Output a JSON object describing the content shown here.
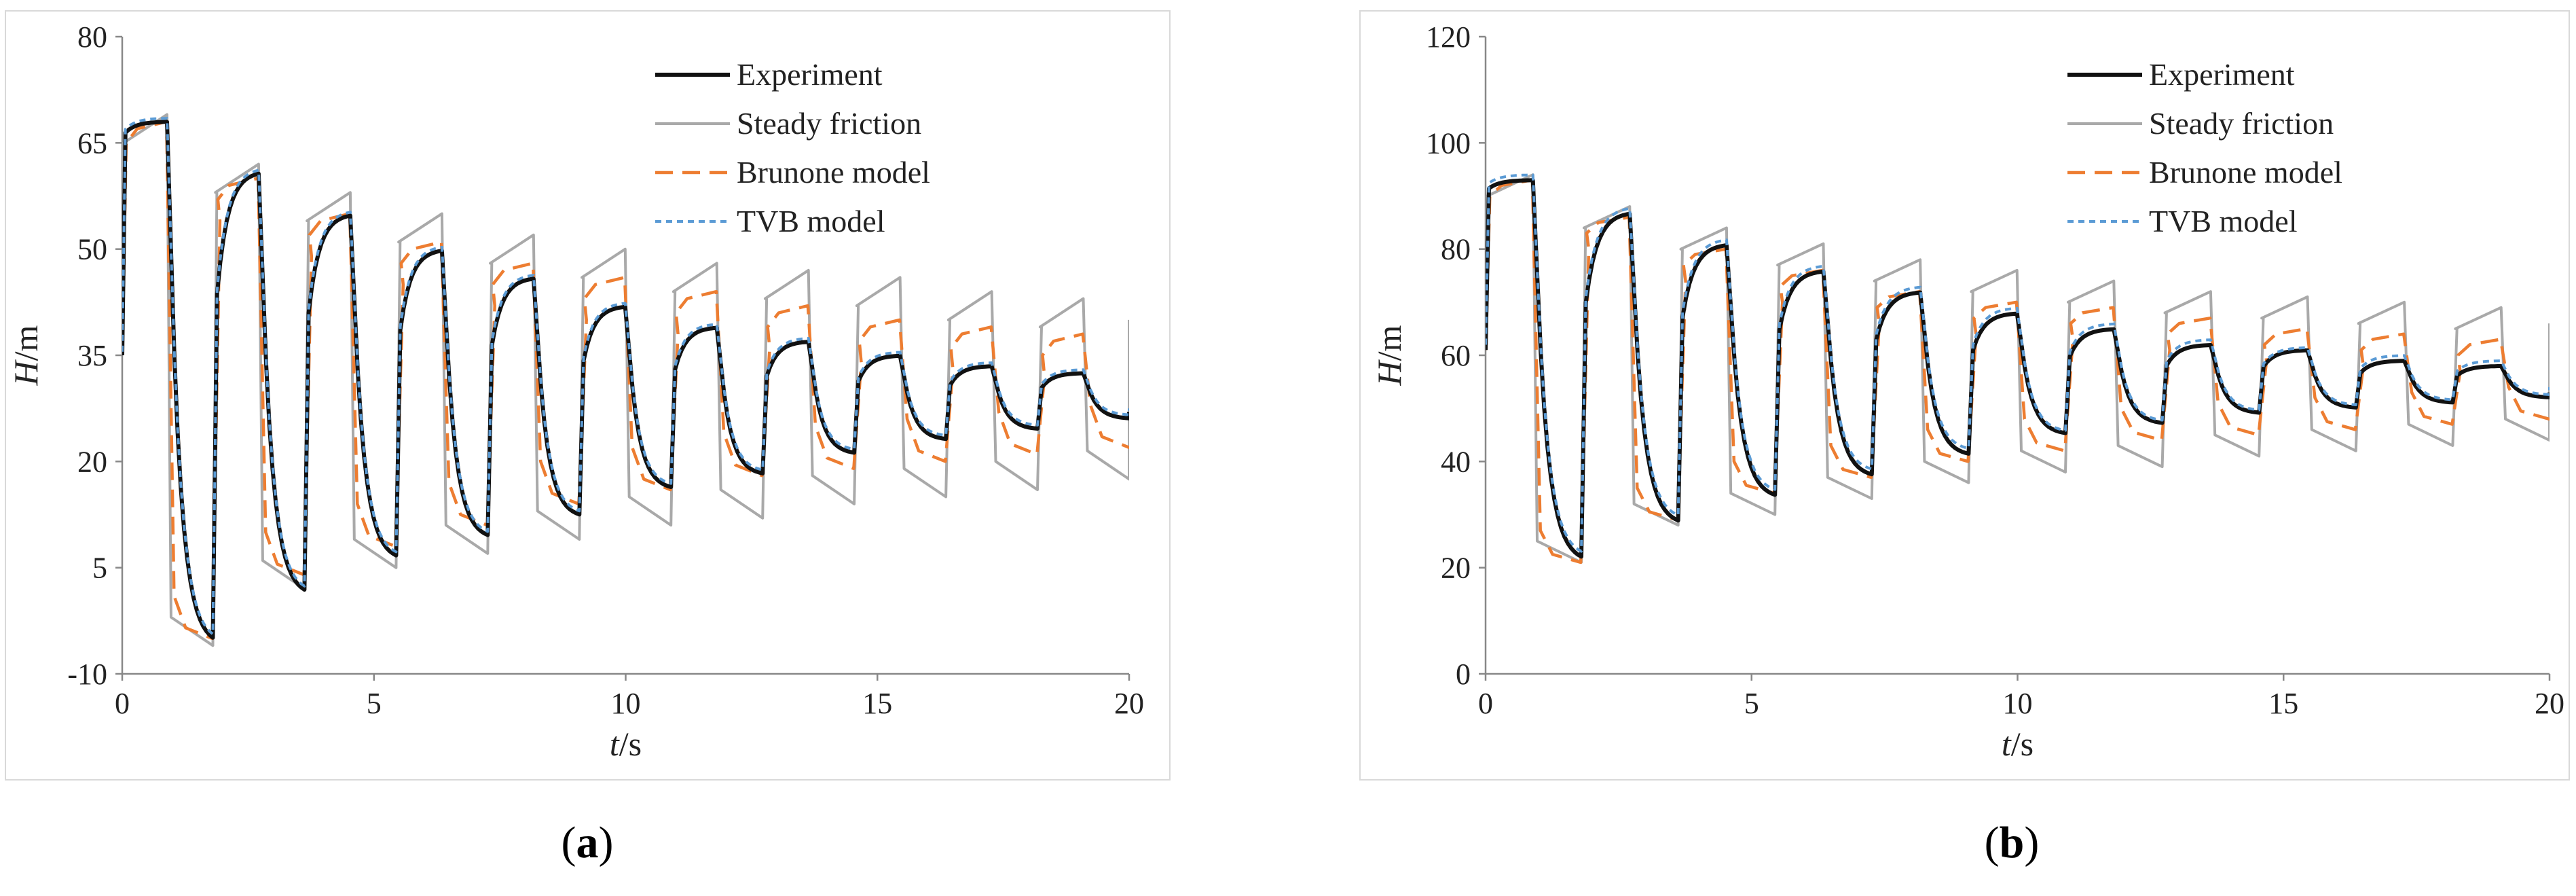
{
  "chart_data": [
    {
      "type": "line",
      "caption_letter": "a",
      "xlabel_italic": "t",
      "xlabel_unit": "/s",
      "ylabel_italic": "H",
      "ylabel_unit": "/m",
      "xlim": [
        0,
        20
      ],
      "ylim": [
        -10,
        80
      ],
      "xticks": [
        0,
        5,
        10,
        15,
        20
      ],
      "yticks": [
        -10,
        5,
        20,
        35,
        50,
        65,
        80
      ],
      "grid": false,
      "legend_position": "top-right",
      "period": 1.82,
      "series": [
        {
          "name": "Experiment",
          "color": "#111111",
          "style": "solid",
          "highs": [
            68,
            61,
            55,
            50,
            46,
            42,
            39,
            37,
            35,
            33.5,
            32.5
          ],
          "lows": [
            -6,
            1,
            6,
            9,
            12,
            16,
            18,
            21,
            23,
            24.5,
            26
          ],
          "end": 27
        },
        {
          "name": "Steady friction",
          "color": "#a9a9a9",
          "style": "solid",
          "highs": [
            69,
            62,
            58,
            55,
            52,
            50,
            48,
            47,
            46,
            44,
            43
          ],
          "lows": [
            -6,
            2,
            5,
            7,
            9,
            11,
            12,
            14,
            15,
            16,
            17.5
          ],
          "end": 40
        },
        {
          "name": "Brunone model",
          "color": "#ed7d31",
          "style": "dashed",
          "highs": [
            68,
            60,
            55,
            51,
            48,
            46,
            44,
            42,
            40,
            39,
            38
          ],
          "lows": [
            -5,
            4,
            8,
            11,
            14,
            16,
            18,
            19,
            20,
            21,
            22
          ],
          "end": 22
        },
        {
          "name": "TVB model",
          "color": "#5b9bd5",
          "style": "dotted",
          "highs": [
            68.5,
            61.5,
            55.5,
            50.5,
            46.5,
            42.5,
            39.5,
            37.5,
            35.5,
            34,
            33
          ],
          "lows": [
            -5.5,
            1.5,
            6.5,
            9.5,
            12.5,
            16.5,
            18.5,
            21.5,
            23.5,
            25,
            26.5
          ],
          "end": 27.5
        }
      ]
    },
    {
      "type": "line",
      "caption_letter": "b",
      "xlabel_italic": "t",
      "xlabel_unit": "/s",
      "ylabel_italic": "H",
      "ylabel_unit": "/m",
      "xlim": [
        0,
        20
      ],
      "ylim": [
        0,
        120
      ],
      "xticks": [
        0,
        5,
        10,
        15,
        20
      ],
      "yticks": [
        0,
        20,
        40,
        60,
        80,
        100,
        120
      ],
      "grid": false,
      "legend_position": "top-right",
      "period": 1.82,
      "series": [
        {
          "name": "Experiment",
          "color": "#111111",
          "style": "solid",
          "highs": [
            93,
            87,
            81,
            76,
            72,
            68,
            65,
            62,
            61,
            59,
            58
          ],
          "lows": [
            21,
            28,
            33,
            37,
            41,
            45,
            47,
            49,
            50,
            51,
            52
          ],
          "end": 53
        },
        {
          "name": "Steady friction",
          "color": "#a9a9a9",
          "style": "solid",
          "highs": [
            94,
            88,
            84,
            81,
            78,
            76,
            74,
            72,
            71,
            70,
            69
          ],
          "lows": [
            21,
            28,
            30,
            33,
            36,
            38,
            39,
            41,
            42,
            43,
            44
          ],
          "end": 66
        },
        {
          "name": "Brunone model",
          "color": "#ed7d31",
          "style": "dashed",
          "highs": [
            93,
            86,
            80,
            76,
            72,
            70,
            69,
            67,
            65,
            64,
            63
          ],
          "lows": [
            21,
            29,
            34,
            37,
            40,
            42,
            44,
            45,
            46,
            47,
            48
          ],
          "end": 48
        },
        {
          "name": "TVB model",
          "color": "#5b9bd5",
          "style": "dotted",
          "highs": [
            94,
            88,
            82,
            77,
            73,
            69,
            66,
            63,
            61.5,
            60,
            59
          ],
          "lows": [
            22,
            29,
            34,
            38,
            42,
            45.5,
            47.5,
            49.5,
            50.5,
            51.5,
            52.5
          ],
          "end": 54
        }
      ]
    }
  ]
}
